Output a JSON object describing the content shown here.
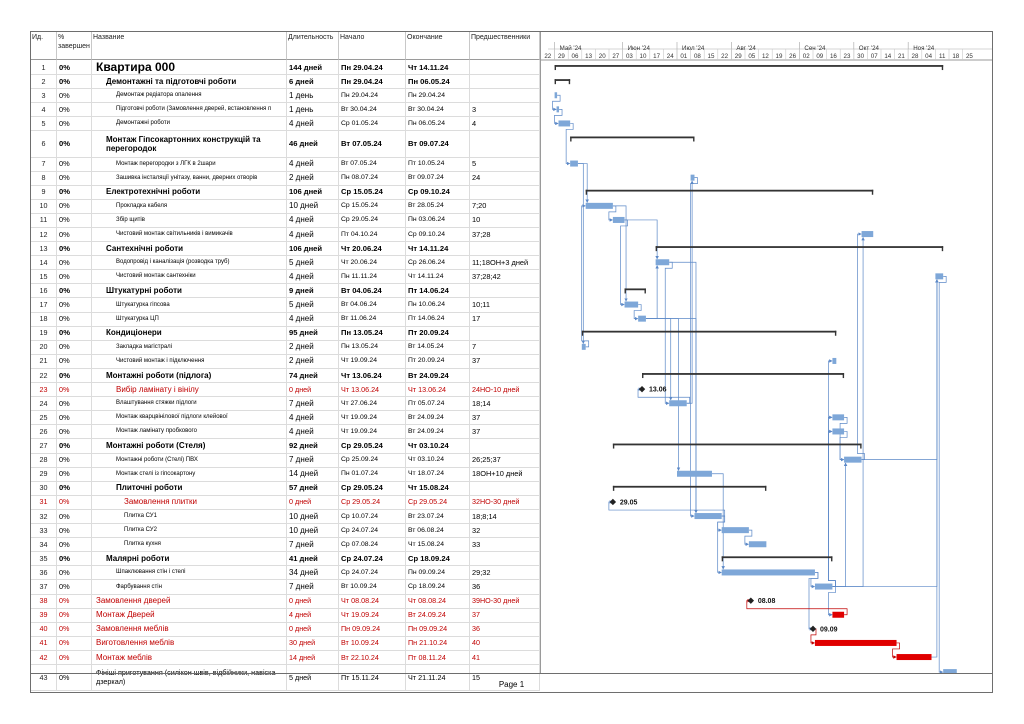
{
  "columns": {
    "id": "Ид.",
    "pct": "% завершен",
    "name": "Название",
    "dur": "Длительность",
    "start": "Начало",
    "end": "Окончание",
    "pred": "Предшественники"
  },
  "timeline": {
    "months": [
      {
        "label": "Май '24",
        "start": "2024-04-29"
      },
      {
        "label": "Июн '24",
        "start": "2024-06-03"
      },
      {
        "label": "Июл '24",
        "start": "2024-07-01"
      },
      {
        "label": "Авг '24",
        "start": "2024-07-29"
      },
      {
        "label": "Сен '24",
        "start": "2024-09-02"
      },
      {
        "label": "Окт '24",
        "start": "2024-09-30"
      },
      {
        "label": "Ноя '24",
        "start": "2024-10-28"
      }
    ],
    "weeks": [
      "22",
      "29",
      "06",
      "13",
      "20",
      "27",
      "03",
      "10",
      "17",
      "24",
      "01",
      "08",
      "15",
      "22",
      "29",
      "05",
      "12",
      "19",
      "26",
      "02",
      "09",
      "16",
      "23",
      "30",
      "07",
      "14",
      "21",
      "28",
      "04",
      "11",
      "18",
      "25"
    ],
    "first_week": "2024-04-22",
    "week_count": 32
  },
  "footer": "Page 1",
  "colors": {
    "bar": "#7ea7d8",
    "critical": "#e00000",
    "summary": "#333333",
    "link": "#5b88c7",
    "critical_link": "#c00000"
  },
  "chart_data": {
    "type": "gantt",
    "x_axis": "date",
    "tasks": [
      {
        "id": "1",
        "pct": "0%",
        "name": "Квартира 000",
        "dur": "144 дней",
        "start": "Пн 29.04.24",
        "end": "Чт 14.11.24",
        "pred": "",
        "s": "2024-04-29",
        "e": "2024-11-14",
        "kind": "summary",
        "lvl": 0,
        "style": "big"
      },
      {
        "id": "2",
        "pct": "0%",
        "name": "Демонтажні та підготовчі роботи",
        "dur": "6 дней",
        "start": "Пн 29.04.24",
        "end": "Пн 06.05.24",
        "pred": "",
        "s": "2024-04-29",
        "e": "2024-05-06",
        "kind": "summary",
        "lvl": 1,
        "style": "bold"
      },
      {
        "id": "3",
        "pct": "0%",
        "name": "Демонтаж редіатора опалення",
        "dur": "1 день",
        "start": "Пн 29.04.24",
        "end": "Пн 29.04.24",
        "pred": "",
        "s": "2024-04-29",
        "e": "2024-04-29",
        "kind": "task",
        "lvl": 2,
        "style": "small"
      },
      {
        "id": "4",
        "pct": "0%",
        "name": "Підготовчі роботи (Замовлення дверей, встановлення п",
        "dur": "1 день",
        "start": "Вт 30.04.24",
        "end": "Вт 30.04.24",
        "pred": "3",
        "s": "2024-04-30",
        "e": "2024-04-30",
        "kind": "task",
        "lvl": 2,
        "style": "small"
      },
      {
        "id": "5",
        "pct": "0%",
        "name": "Демонтажні роботи",
        "dur": "4 дней",
        "start": "Ср 01.05.24",
        "end": "Пн 06.05.24",
        "pred": "4",
        "s": "2024-05-01",
        "e": "2024-05-06",
        "kind": "task",
        "lvl": 2,
        "style": "small"
      },
      {
        "id": "6",
        "pct": "0%",
        "name": "Монтаж Гіпсокартонних конструкцій та перегородок",
        "dur": "46 дней",
        "start": "Вт 07.05.24",
        "end": "Вт 09.07.24",
        "pred": "",
        "s": "2024-05-07",
        "e": "2024-07-09",
        "kind": "summary",
        "lvl": 1,
        "style": "bold",
        "tall": true
      },
      {
        "id": "7",
        "pct": "0%",
        "name": "Монтаж перегородки з ЛГК в 2шари",
        "dur": "4 дней",
        "start": "Вт 07.05.24",
        "end": "Пт 10.05.24",
        "pred": "5",
        "s": "2024-05-07",
        "e": "2024-05-10",
        "kind": "task",
        "lvl": 2,
        "style": "small"
      },
      {
        "id": "8",
        "pct": "0%",
        "name": "Зашивка інсталяції унітазу, ванни, дверних отворів",
        "dur": "2 дней",
        "start": "Пн 08.07.24",
        "end": "Вт 09.07.24",
        "pred": "24",
        "s": "2024-07-08",
        "e": "2024-07-09",
        "kind": "task",
        "lvl": 2,
        "style": "small"
      },
      {
        "id": "9",
        "pct": "0%",
        "name": "Електротехнічні роботи",
        "dur": "106 дней",
        "start": "Ср 15.05.24",
        "end": "Ср 09.10.24",
        "pred": "",
        "s": "2024-05-15",
        "e": "2024-10-09",
        "kind": "summary",
        "lvl": 1,
        "style": "bold"
      },
      {
        "id": "10",
        "pct": "0%",
        "name": "Прокладка кабеля",
        "dur": "10 дней",
        "start": "Ср 15.05.24",
        "end": "Вт 28.05.24",
        "pred": "7;20",
        "s": "2024-05-15",
        "e": "2024-05-28",
        "kind": "task",
        "lvl": 2,
        "style": "small"
      },
      {
        "id": "11",
        "pct": "0%",
        "name": "Збір щитів",
        "dur": "4 дней",
        "start": "Ср 29.05.24",
        "end": "Пн 03.06.24",
        "pred": "10",
        "s": "2024-05-29",
        "e": "2024-06-03",
        "kind": "task",
        "lvl": 2,
        "style": "small"
      },
      {
        "id": "12",
        "pct": "0%",
        "name": "Чистовий монтаж світильників і вимикачів",
        "dur": "4 дней",
        "start": "Пт 04.10.24",
        "end": "Ср 09.10.24",
        "pred": "37;28",
        "s": "2024-10-04",
        "e": "2024-10-09",
        "kind": "task",
        "lvl": 2,
        "style": "small"
      },
      {
        "id": "13",
        "pct": "0%",
        "name": "Сантехнічні роботи",
        "dur": "106 дней",
        "start": "Чт 20.06.24",
        "end": "Чт 14.11.24",
        "pred": "",
        "s": "2024-06-20",
        "e": "2024-11-14",
        "kind": "summary",
        "lvl": 1,
        "style": "bold"
      },
      {
        "id": "14",
        "pct": "0%",
        "name": "Водопровід і каналізація (розводка труб)",
        "dur": "5 дней",
        "start": "Чт 20.06.24",
        "end": "Ср 26.06.24",
        "pred": "11;18ОН+3 дней",
        "s": "2024-06-20",
        "e": "2024-06-26",
        "kind": "task",
        "lvl": 2,
        "style": "small"
      },
      {
        "id": "15",
        "pct": "0%",
        "name": "Чистовий монтаж сантехніки",
        "dur": "4 дней",
        "start": "Пн 11.11.24",
        "end": "Чт 14.11.24",
        "pred": "37;28;42",
        "s": "2024-11-11",
        "e": "2024-11-14",
        "kind": "task",
        "lvl": 2,
        "style": "small"
      },
      {
        "id": "16",
        "pct": "0%",
        "name": "Штукатурні роботи",
        "dur": "9 дней",
        "start": "Вт 04.06.24",
        "end": "Пт 14.06.24",
        "pred": "",
        "s": "2024-06-04",
        "e": "2024-06-14",
        "kind": "summary",
        "lvl": 1,
        "style": "bold"
      },
      {
        "id": "17",
        "pct": "0%",
        "name": "Штукатурка гіпсова",
        "dur": "5 дней",
        "start": "Вт 04.06.24",
        "end": "Пн 10.06.24",
        "pred": "10;11",
        "s": "2024-06-04",
        "e": "2024-06-10",
        "kind": "task",
        "lvl": 2,
        "style": "small"
      },
      {
        "id": "18",
        "pct": "0%",
        "name": "Штукатурка ЦП",
        "dur": "4 дней",
        "start": "Вт 11.06.24",
        "end": "Пт 14.06.24",
        "pred": "17",
        "s": "2024-06-11",
        "e": "2024-06-14",
        "kind": "task",
        "lvl": 2,
        "style": "small"
      },
      {
        "id": "19",
        "pct": "0%",
        "name": "Кондиціонери",
        "dur": "95 дней",
        "start": "Пн 13.05.24",
        "end": "Пт 20.09.24",
        "pred": "",
        "s": "2024-05-13",
        "e": "2024-09-20",
        "kind": "summary",
        "lvl": 1,
        "style": "bold"
      },
      {
        "id": "20",
        "pct": "0%",
        "name": "Закладка магістралі",
        "dur": "2 дней",
        "start": "Пн 13.05.24",
        "end": "Вт 14.05.24",
        "pred": "7",
        "s": "2024-05-13",
        "e": "2024-05-14",
        "kind": "task",
        "lvl": 2,
        "style": "small"
      },
      {
        "id": "21",
        "pct": "0%",
        "name": "Чистовий монтаж і підключення",
        "dur": "2 дней",
        "start": "Чт 19.09.24",
        "end": "Пт 20.09.24",
        "pred": "37",
        "s": "2024-09-19",
        "e": "2024-09-20",
        "kind": "task",
        "lvl": 2,
        "style": "small"
      },
      {
        "id": "22",
        "pct": "0%",
        "name": "Монтажні роботи (підлога)",
        "dur": "74 дней",
        "start": "Чт 13.06.24",
        "end": "Вт 24.09.24",
        "pred": "",
        "s": "2024-06-13",
        "e": "2024-09-24",
        "kind": "summary",
        "lvl": 1,
        "style": "bold"
      },
      {
        "id": "23",
        "pct": "0%",
        "name": "Вибір ламінату і вінілу",
        "dur": "0 дней",
        "start": "Чт 13.06.24",
        "end": "Чт 13.06.24",
        "pred": "24НО-10 дней",
        "s": "2024-06-13",
        "e": "2024-06-13",
        "kind": "milestone",
        "lvl": 2,
        "style": "red",
        "label": "13.06"
      },
      {
        "id": "24",
        "pct": "0%",
        "name": "Влаштування стяжки підлоги",
        "dur": "7 дней",
        "start": "Чт 27.06.24",
        "end": "Пт 05.07.24",
        "pred": "18;14",
        "s": "2024-06-27",
        "e": "2024-07-05",
        "kind": "task",
        "lvl": 2,
        "style": "small"
      },
      {
        "id": "25",
        "pct": "0%",
        "name": "Монтаж кварцвінілової підлоги клейової",
        "dur": "4 дней",
        "start": "Чт 19.09.24",
        "end": "Вт 24.09.24",
        "pred": "37",
        "s": "2024-09-19",
        "e": "2024-09-24",
        "kind": "task",
        "lvl": 2,
        "style": "small"
      },
      {
        "id": "26",
        "pct": "0%",
        "name": "Монтаж ламінату пробкового",
        "dur": "4 дней",
        "start": "Чт 19.09.24",
        "end": "Вт 24.09.24",
        "pred": "37",
        "s": "2024-09-19",
        "e": "2024-09-24",
        "kind": "task",
        "lvl": 2,
        "style": "small"
      },
      {
        "id": "27",
        "pct": "0%",
        "name": "Монтажні роботи (Стеля)",
        "dur": "92 дней",
        "start": "Ср 29.05.24",
        "end": "Чт 03.10.24",
        "pred": "",
        "s": "2024-05-29",
        "e": "2024-10-03",
        "kind": "summary",
        "lvl": 1,
        "style": "bold"
      },
      {
        "id": "28",
        "pct": "0%",
        "name": "Монтажні роботи (Стелі) ПВХ",
        "dur": "7 дней",
        "start": "Ср 25.09.24",
        "end": "Чт 03.10.24",
        "pred": "26;25;37",
        "s": "2024-09-25",
        "e": "2024-10-03",
        "kind": "task",
        "lvl": 2,
        "style": "small"
      },
      {
        "id": "29",
        "pct": "0%",
        "name": "Монтаж стелі із гіпсокартону",
        "dur": "14 дней",
        "start": "Пн 01.07.24",
        "end": "Чт 18.07.24",
        "pred": "18ОН+10 дней",
        "s": "2024-07-01",
        "e": "2024-07-18",
        "kind": "task",
        "lvl": 2,
        "style": "small"
      },
      {
        "id": "30",
        "pct": "0%",
        "name": "Плиточні роботи",
        "dur": "57 дней",
        "start": "Ср 29.05.24",
        "end": "Чт 15.08.24",
        "pred": "",
        "s": "2024-05-29",
        "e": "2024-08-15",
        "kind": "summary",
        "lvl": 2,
        "style": "bold"
      },
      {
        "id": "31",
        "pct": "0%",
        "name": "Замовлення плитки",
        "dur": "0 дней",
        "start": "Ср 29.05.24",
        "end": "Ср 29.05.24",
        "pred": "32НО-30 дней",
        "s": "2024-05-29",
        "e": "2024-05-29",
        "kind": "milestone",
        "lvl": 3,
        "style": "red",
        "label": "29.05"
      },
      {
        "id": "32",
        "pct": "0%",
        "name": "Плитка СУ1",
        "dur": "10 дней",
        "start": "Ср 10.07.24",
        "end": "Вт 23.07.24",
        "pred": "18;8;14",
        "s": "2024-07-10",
        "e": "2024-07-23",
        "kind": "task",
        "lvl": 3,
        "style": "small"
      },
      {
        "id": "33",
        "pct": "0%",
        "name": "Плитка СУ2",
        "dur": "10 дней",
        "start": "Ср 24.07.24",
        "end": "Вт 06.08.24",
        "pred": "32",
        "s": "2024-07-24",
        "e": "2024-08-06",
        "kind": "task",
        "lvl": 3,
        "style": "small"
      },
      {
        "id": "34",
        "pct": "0%",
        "name": "Плитка кухня",
        "dur": "7 дней",
        "start": "Ср 07.08.24",
        "end": "Чт 15.08.24",
        "pred": "33",
        "s": "2024-08-07",
        "e": "2024-08-15",
        "kind": "task",
        "lvl": 3,
        "style": "small"
      },
      {
        "id": "35",
        "pct": "0%",
        "name": "Малярні роботи",
        "dur": "41 дней",
        "start": "Ср 24.07.24",
        "end": "Ср 18.09.24",
        "pred": "",
        "s": "2024-07-24",
        "e": "2024-09-18",
        "kind": "summary",
        "lvl": 1,
        "style": "bold"
      },
      {
        "id": "36",
        "pct": "0%",
        "name": "Шпаклювання стін і стелі",
        "dur": "34 дней",
        "start": "Ср 24.07.24",
        "end": "Пн 09.09.24",
        "pred": "29;32",
        "s": "2024-07-24",
        "e": "2024-09-09",
        "kind": "task",
        "lvl": 2,
        "style": "small"
      },
      {
        "id": "37",
        "pct": "0%",
        "name": "Фарбування стін",
        "dur": "7 дней",
        "start": "Вт 10.09.24",
        "end": "Ср 18.09.24",
        "pred": "36",
        "s": "2024-09-10",
        "e": "2024-09-18",
        "kind": "task",
        "lvl": 2,
        "style": "small"
      },
      {
        "id": "38",
        "pct": "0%",
        "name": "Замовлення дверей",
        "dur": "0 дней",
        "start": "Чт 08.08.24",
        "end": "Чт 08.08.24",
        "pred": "39НО-30 дней",
        "s": "2024-08-08",
        "e": "2024-08-08",
        "kind": "milestone",
        "lvl": 0,
        "style": "red",
        "label": "08.08"
      },
      {
        "id": "39",
        "pct": "0%",
        "name": "Монтаж Дверей",
        "dur": "4 дней",
        "start": "Чт 19.09.24",
        "end": "Вт 24.09.24",
        "pred": "37",
        "s": "2024-09-19",
        "e": "2024-09-24",
        "kind": "critical",
        "lvl": 0,
        "style": "red"
      },
      {
        "id": "40",
        "pct": "0%",
        "name": "Замовлення меблів",
        "dur": "0 дней",
        "start": "Пн 09.09.24",
        "end": "Пн 09.09.24",
        "pred": "36",
        "s": "2024-09-09",
        "e": "2024-09-09",
        "kind": "milestone",
        "lvl": 0,
        "style": "red",
        "label": "09.09"
      },
      {
        "id": "41",
        "pct": "0%",
        "name": "Виготовлення меблів",
        "dur": "30 дней",
        "start": "Вт 10.09.24",
        "end": "Пн 21.10.24",
        "pred": "40",
        "s": "2024-09-10",
        "e": "2024-10-21",
        "kind": "critical",
        "lvl": 0,
        "style": "red"
      },
      {
        "id": "42",
        "pct": "0%",
        "name": "Монтаж меблів",
        "dur": "14 дней",
        "start": "Вт 22.10.24",
        "end": "Пт 08.11.24",
        "pred": "41",
        "s": "2024-10-22",
        "e": "2024-11-08",
        "kind": "critical",
        "lvl": 0,
        "style": "red"
      },
      {
        "id": "43",
        "pct": "0%",
        "name": "Фініші приготування (силікон швів, відбійники, навіска дзеркал)",
        "dur": "5 дней",
        "start": "Пт 15.11.24",
        "end": "Чт 21.11.24",
        "pred": "15",
        "s": "2024-11-15",
        "e": "2024-11-21",
        "kind": "task",
        "lvl": 0,
        "style": "wrap",
        "tall": true
      }
    ],
    "links": [
      [
        "3",
        "4"
      ],
      [
        "4",
        "5"
      ],
      [
        "5",
        "7"
      ],
      [
        "7",
        "10"
      ],
      [
        "7",
        "20"
      ],
      [
        "20",
        "10"
      ],
      [
        "10",
        "11"
      ],
      [
        "10",
        "17"
      ],
      [
        "11",
        "17"
      ],
      [
        "17",
        "18"
      ],
      [
        "11",
        "14"
      ],
      [
        "18",
        "14"
      ],
      [
        "14",
        "24"
      ],
      [
        "18",
        "24"
      ],
      [
        "24",
        "8"
      ],
      [
        "18",
        "29"
      ],
      [
        "24",
        "23"
      ],
      [
        "18",
        "32"
      ],
      [
        "8",
        "32"
      ],
      [
        "14",
        "32"
      ],
      [
        "32",
        "31"
      ],
      [
        "32",
        "33"
      ],
      [
        "33",
        "34"
      ],
      [
        "29",
        "36"
      ],
      [
        "32",
        "36"
      ],
      [
        "36",
        "37"
      ],
      [
        "36",
        "40"
      ],
      [
        "37",
        "21"
      ],
      [
        "37",
        "25"
      ],
      [
        "37",
        "26"
      ],
      [
        "37",
        "39"
      ],
      [
        "39",
        "38"
      ],
      [
        "25",
        "28"
      ],
      [
        "26",
        "28"
      ],
      [
        "37",
        "28"
      ],
      [
        "28",
        "12"
      ],
      [
        "37",
        "12"
      ],
      [
        "40",
        "41"
      ],
      [
        "41",
        "42"
      ],
      [
        "42",
        "15"
      ],
      [
        "28",
        "15"
      ],
      [
        "37",
        "15"
      ],
      [
        "15",
        "43"
      ]
    ]
  }
}
